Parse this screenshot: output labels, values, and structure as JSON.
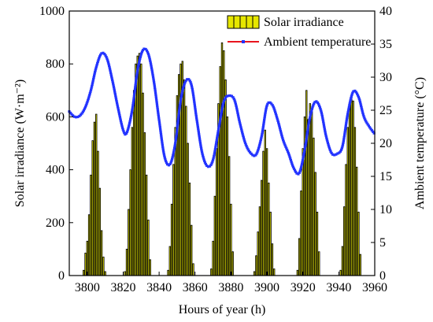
{
  "chart_data": {
    "type": "bar+line",
    "xlabel": "Hours of year (h)",
    "ylabel_left": "Solar irradiance (W·m⁻²)",
    "ylabel_right": "Ambient temperature (°C)",
    "xlim": [
      3790,
      3960
    ],
    "ylim_left": [
      0,
      1000
    ],
    "ylim_right": [
      0,
      40
    ],
    "xticks": [
      3800,
      3820,
      3840,
      3860,
      3880,
      3900,
      3920,
      3940,
      3960
    ],
    "yticks_left": [
      0,
      200,
      400,
      600,
      800,
      1000
    ],
    "yticks_right": [
      0,
      5,
      10,
      15,
      20,
      25,
      30,
      35,
      40
    ],
    "legend": {
      "position": "top-right",
      "entries": [
        "Solar irradiance",
        "Ambient temperature"
      ]
    },
    "colors": {
      "bar_fill": "#e6e600",
      "bar_edge": "#000000",
      "line": "#e8141e",
      "marker": "#2233ff"
    },
    "series": [
      {
        "name": "Solar irradiance",
        "kind": "bar",
        "days": [
          {
            "start": 3798,
            "values": [
              20,
              85,
              130,
              230,
              380,
              510,
              580,
              610,
              470,
              330,
              170,
              70,
              15
            ]
          },
          {
            "start": 3821,
            "values": [
              15,
              100,
              250,
              400,
              560,
              700,
              800,
              830,
              840,
              800,
              690,
              540,
              380,
              210,
              60
            ]
          },
          {
            "start": 3845,
            "values": [
              20,
              110,
              270,
              420,
              560,
              680,
              760,
              800,
              810,
              740,
              640,
              500,
              350,
              190,
              45
            ]
          },
          {
            "start": 3869,
            "values": [
              25,
              130,
              300,
              480,
              650,
              790,
              880,
              850,
              740,
              600,
              450,
              270,
              90
            ]
          },
          {
            "start": 3893,
            "values": [
              15,
              75,
              165,
              260,
              360,
              470,
              550,
              480,
              350,
              240,
              120,
              25
            ]
          },
          {
            "start": 3917,
            "values": [
              20,
              140,
              320,
              480,
              600,
              700,
              590,
              650,
              620,
              520,
              390,
              240,
              90
            ]
          },
          {
            "start": 3941,
            "values": [
              20,
              110,
              260,
              420,
              560,
              650,
              680,
              660,
              560,
              410,
              240,
              80
            ]
          }
        ]
      },
      {
        "name": "Ambient temperature",
        "kind": "line",
        "points": [
          [
            3790,
            24.8
          ],
          [
            3793,
            24.0
          ],
          [
            3796,
            24.2
          ],
          [
            3799,
            25.5
          ],
          [
            3802,
            28.0
          ],
          [
            3805,
            31.5
          ],
          [
            3808,
            33.6
          ],
          [
            3811,
            32.8
          ],
          [
            3814,
            29.5
          ],
          [
            3817,
            25.5
          ],
          [
            3820,
            22.0
          ],
          [
            3822,
            21.6
          ],
          [
            3825,
            25.0
          ],
          [
            3828,
            31.0
          ],
          [
            3831,
            34.1
          ],
          [
            3834,
            33.5
          ],
          [
            3837,
            29.5
          ],
          [
            3840,
            23.5
          ],
          [
            3843,
            18.0
          ],
          [
            3846,
            16.8
          ],
          [
            3849,
            20.0
          ],
          [
            3852,
            26.5
          ],
          [
            3855,
            29.5
          ],
          [
            3858,
            28.8
          ],
          [
            3861,
            23.5
          ],
          [
            3864,
            18.5
          ],
          [
            3867,
            16.5
          ],
          [
            3870,
            17.5
          ],
          [
            3873,
            22.0
          ],
          [
            3876,
            26.3
          ],
          [
            3879,
            27.2
          ],
          [
            3882,
            26.5
          ],
          [
            3885,
            23.0
          ],
          [
            3888,
            20.0
          ],
          [
            3891,
            18.5
          ],
          [
            3894,
            18.3
          ],
          [
            3897,
            21.0
          ],
          [
            3900,
            25.7
          ],
          [
            3903,
            25.8
          ],
          [
            3906,
            23.5
          ],
          [
            3909,
            20.5
          ],
          [
            3912,
            18.5
          ],
          [
            3915,
            16.2
          ],
          [
            3918,
            15.5
          ],
          [
            3921,
            19.0
          ],
          [
            3924,
            24.0
          ],
          [
            3927,
            26.3
          ],
          [
            3930,
            25.0
          ],
          [
            3933,
            21.0
          ],
          [
            3936,
            18.5
          ],
          [
            3939,
            18.4
          ],
          [
            3942,
            19.5
          ],
          [
            3945,
            24.5
          ],
          [
            3948,
            27.8
          ],
          [
            3951,
            27.0
          ],
          [
            3954,
            24.0
          ],
          [
            3957,
            22.5
          ],
          [
            3960,
            21.4
          ]
        ]
      }
    ]
  }
}
